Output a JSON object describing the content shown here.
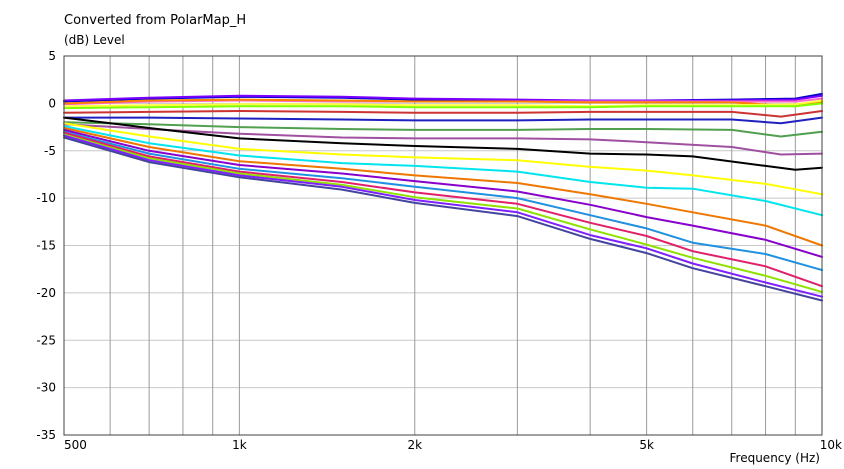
{
  "chart_data": {
    "type": "line",
    "title": "Converted from PolarMap_H",
    "ylabel": "(dB)  Level",
    "xlabel": "Frequency  (Hz)",
    "x_scale": "log",
    "xlim": [
      500,
      10000
    ],
    "ylim": [
      -35,
      5
    ],
    "y_ticks": [
      5,
      0,
      -5,
      -10,
      -15,
      -20,
      -25,
      -30,
      -35
    ],
    "x_tick_labels": [
      {
        "value": 500,
        "label": "500"
      },
      {
        "value": 1000,
        "label": "1k"
      },
      {
        "value": 2000,
        "label": "2k"
      },
      {
        "value": 5000,
        "label": "5k"
      },
      {
        "value": 10000,
        "label": "10k"
      }
    ],
    "x_gridlines": [
      600,
      700,
      800,
      900,
      1000,
      2000,
      3000,
      4000,
      5000,
      6000,
      7000,
      8000,
      9000
    ],
    "grid": true,
    "series": [
      {
        "color": "#0000cc",
        "points": [
          [
            500,
            0.2
          ],
          [
            700,
            0.5
          ],
          [
            1000,
            0.7
          ],
          [
            1500,
            0.6
          ],
          [
            2000,
            0.4
          ],
          [
            3000,
            0.3
          ],
          [
            4000,
            0.2
          ],
          [
            5000,
            0.3
          ],
          [
            7000,
            0.4
          ],
          [
            9000,
            0.5
          ],
          [
            10000,
            1.0
          ]
        ]
      },
      {
        "color": "#7b00ff",
        "points": [
          [
            500,
            0.3
          ],
          [
            700,
            0.6
          ],
          [
            1000,
            0.8
          ],
          [
            1500,
            0.7
          ],
          [
            2000,
            0.5
          ],
          [
            3000,
            0.4
          ],
          [
            4000,
            0.3
          ],
          [
            5000,
            0.3
          ],
          [
            7000,
            0.3
          ],
          [
            9000,
            0.4
          ],
          [
            10000,
            0.8
          ]
        ]
      },
      {
        "color": "#ff66cc",
        "points": [
          [
            500,
            -0.1
          ],
          [
            700,
            0.2
          ],
          [
            1000,
            0.3
          ],
          [
            1500,
            0.2
          ],
          [
            2000,
            0.2
          ],
          [
            3000,
            0.2
          ],
          [
            4000,
            0.2
          ],
          [
            5000,
            0.2
          ],
          [
            7000,
            0.2
          ],
          [
            9000,
            0.2
          ],
          [
            10000,
            0.5
          ]
        ]
      },
      {
        "color": "#ff8000",
        "points": [
          [
            500,
            0.0
          ],
          [
            700,
            0.3
          ],
          [
            1000,
            0.4
          ],
          [
            1500,
            0.3
          ],
          [
            2000,
            0.2
          ],
          [
            3000,
            0.2
          ],
          [
            4000,
            0.1
          ],
          [
            5000,
            0.1
          ],
          [
            7000,
            0.1
          ],
          [
            9000,
            -0.3
          ],
          [
            10000,
            0.2
          ]
        ]
      },
      {
        "color": "#ffff40",
        "points": [
          [
            500,
            -0.3
          ],
          [
            700,
            -0.2
          ],
          [
            1000,
            -0.1
          ],
          [
            1500,
            -0.1
          ],
          [
            2000,
            -0.2
          ],
          [
            3000,
            -0.2
          ],
          [
            4000,
            -0.3
          ],
          [
            5000,
            -0.2
          ],
          [
            7000,
            -0.2
          ],
          [
            9000,
            -0.1
          ],
          [
            10000,
            0.3
          ]
        ]
      },
      {
        "color": "#80ff00",
        "points": [
          [
            500,
            -0.5
          ],
          [
            700,
            -0.4
          ],
          [
            1000,
            -0.3
          ],
          [
            1500,
            -0.3
          ],
          [
            2000,
            -0.4
          ],
          [
            3000,
            -0.4
          ],
          [
            4000,
            -0.4
          ],
          [
            5000,
            -0.3
          ],
          [
            7000,
            -0.3
          ],
          [
            9000,
            -0.3
          ],
          [
            10000,
            0.0
          ]
        ]
      },
      {
        "color": "#cc3333",
        "points": [
          [
            500,
            -1.0
          ],
          [
            700,
            -0.9
          ],
          [
            1000,
            -0.8
          ],
          [
            1500,
            -0.9
          ],
          [
            2000,
            -1.0
          ],
          [
            3000,
            -1.0
          ],
          [
            4000,
            -0.9
          ],
          [
            5000,
            -0.9
          ],
          [
            7000,
            -0.9
          ],
          [
            8500,
            -1.4
          ],
          [
            10000,
            -0.8
          ]
        ]
      },
      {
        "color": "#2020c0",
        "points": [
          [
            500,
            -1.5
          ],
          [
            700,
            -1.5
          ],
          [
            1000,
            -1.6
          ],
          [
            1500,
            -1.7
          ],
          [
            2000,
            -1.8
          ],
          [
            3000,
            -1.8
          ],
          [
            4000,
            -1.7
          ],
          [
            5000,
            -1.7
          ],
          [
            7000,
            -1.7
          ],
          [
            8500,
            -2.1
          ],
          [
            10000,
            -1.5
          ]
        ]
      },
      {
        "color": "#50a050",
        "points": [
          [
            500,
            -2.0
          ],
          [
            700,
            -2.2
          ],
          [
            1000,
            -2.5
          ],
          [
            1500,
            -2.7
          ],
          [
            2000,
            -2.8
          ],
          [
            3000,
            -2.8
          ],
          [
            4000,
            -2.7
          ],
          [
            5000,
            -2.7
          ],
          [
            7000,
            -2.8
          ],
          [
            8500,
            -3.5
          ],
          [
            10000,
            -3.0
          ]
        ]
      },
      {
        "color": "#a050a0",
        "points": [
          [
            500,
            -2.2
          ],
          [
            700,
            -2.7
          ],
          [
            1000,
            -3.2
          ],
          [
            1500,
            -3.6
          ],
          [
            2000,
            -3.7
          ],
          [
            3000,
            -3.7
          ],
          [
            4000,
            -3.8
          ],
          [
            5000,
            -4.1
          ],
          [
            7000,
            -4.6
          ],
          [
            8500,
            -5.4
          ],
          [
            10000,
            -5.3
          ]
        ]
      },
      {
        "color": "#000000",
        "points": [
          [
            500,
            -1.5
          ],
          [
            700,
            -2.6
          ],
          [
            1000,
            -3.7
          ],
          [
            1500,
            -4.2
          ],
          [
            2000,
            -4.5
          ],
          [
            3000,
            -4.8
          ],
          [
            4000,
            -5.3
          ],
          [
            5000,
            -5.4
          ],
          [
            6000,
            -5.6
          ],
          [
            8000,
            -6.6
          ],
          [
            9000,
            -7.0
          ],
          [
            10000,
            -6.8
          ]
        ]
      },
      {
        "color": "#ffff00",
        "points": [
          [
            500,
            -2.1
          ],
          [
            700,
            -3.5
          ],
          [
            1000,
            -4.8
          ],
          [
            1500,
            -5.4
          ],
          [
            2000,
            -5.7
          ],
          [
            3000,
            -6.0
          ],
          [
            4000,
            -6.7
          ],
          [
            5000,
            -7.1
          ],
          [
            6000,
            -7.6
          ],
          [
            8000,
            -8.5
          ],
          [
            10000,
            -9.6
          ]
        ]
      },
      {
        "color": "#00e5ee",
        "points": [
          [
            500,
            -2.4
          ],
          [
            700,
            -4.2
          ],
          [
            1000,
            -5.5
          ],
          [
            1500,
            -6.3
          ],
          [
            2000,
            -6.6
          ],
          [
            3000,
            -7.2
          ],
          [
            4000,
            -8.3
          ],
          [
            5000,
            -8.9
          ],
          [
            6000,
            -9.0
          ],
          [
            8000,
            -10.3
          ],
          [
            10000,
            -11.8
          ]
        ]
      },
      {
        "color": "#ee7700",
        "points": [
          [
            500,
            -2.6
          ],
          [
            700,
            -4.6
          ],
          [
            1000,
            -6.1
          ],
          [
            1500,
            -6.9
          ],
          [
            2000,
            -7.6
          ],
          [
            3000,
            -8.4
          ],
          [
            4000,
            -9.6
          ],
          [
            5000,
            -10.6
          ],
          [
            6000,
            -11.5
          ],
          [
            8000,
            -12.9
          ],
          [
            10000,
            -15.0
          ]
        ]
      },
      {
        "color": "#8800cc",
        "points": [
          [
            500,
            -2.8
          ],
          [
            700,
            -5.0
          ],
          [
            1000,
            -6.5
          ],
          [
            1500,
            -7.4
          ],
          [
            2000,
            -8.2
          ],
          [
            3000,
            -9.3
          ],
          [
            4000,
            -10.7
          ],
          [
            5000,
            -12.0
          ],
          [
            6000,
            -12.9
          ],
          [
            8000,
            -14.4
          ],
          [
            10000,
            -16.2
          ]
        ]
      },
      {
        "color": "#2090e0",
        "points": [
          [
            500,
            -3.0
          ],
          [
            700,
            -5.3
          ],
          [
            1000,
            -6.9
          ],
          [
            1500,
            -7.9
          ],
          [
            2000,
            -8.8
          ],
          [
            3000,
            -10.0
          ],
          [
            4000,
            -11.8
          ],
          [
            5000,
            -13.2
          ],
          [
            6000,
            -14.7
          ],
          [
            8000,
            -15.9
          ],
          [
            10000,
            -17.6
          ]
        ]
      },
      {
        "color": "#e0206a",
        "points": [
          [
            500,
            -3.1
          ],
          [
            700,
            -5.6
          ],
          [
            1000,
            -7.2
          ],
          [
            1500,
            -8.3
          ],
          [
            2000,
            -9.4
          ],
          [
            3000,
            -10.6
          ],
          [
            4000,
            -12.6
          ],
          [
            5000,
            -14.0
          ],
          [
            6000,
            -15.6
          ],
          [
            8000,
            -17.2
          ],
          [
            10000,
            -19.3
          ]
        ]
      },
      {
        "color": "#90e000",
        "points": [
          [
            500,
            -3.3
          ],
          [
            700,
            -5.8
          ],
          [
            1000,
            -7.4
          ],
          [
            1500,
            -8.6
          ],
          [
            2000,
            -9.9
          ],
          [
            3000,
            -11.1
          ],
          [
            4000,
            -13.3
          ],
          [
            5000,
            -14.9
          ],
          [
            6000,
            -16.3
          ],
          [
            8000,
            -18.2
          ],
          [
            10000,
            -19.9
          ]
        ]
      },
      {
        "color": "#8020ff",
        "points": [
          [
            500,
            -3.4
          ],
          [
            700,
            -6.0
          ],
          [
            1000,
            -7.6
          ],
          [
            1500,
            -8.8
          ],
          [
            2000,
            -10.2
          ],
          [
            3000,
            -11.5
          ],
          [
            4000,
            -13.9
          ],
          [
            5000,
            -15.3
          ],
          [
            6000,
            -16.9
          ],
          [
            8000,
            -18.9
          ],
          [
            10000,
            -20.4
          ]
        ]
      },
      {
        "color": "#4444a0",
        "points": [
          [
            500,
            -3.6
          ],
          [
            700,
            -6.2
          ],
          [
            1000,
            -7.8
          ],
          [
            1500,
            -9.1
          ],
          [
            2000,
            -10.5
          ],
          [
            3000,
            -11.9
          ],
          [
            4000,
            -14.3
          ],
          [
            5000,
            -15.8
          ],
          [
            6000,
            -17.4
          ],
          [
            8000,
            -19.3
          ],
          [
            10000,
            -20.8
          ]
        ]
      }
    ]
  }
}
